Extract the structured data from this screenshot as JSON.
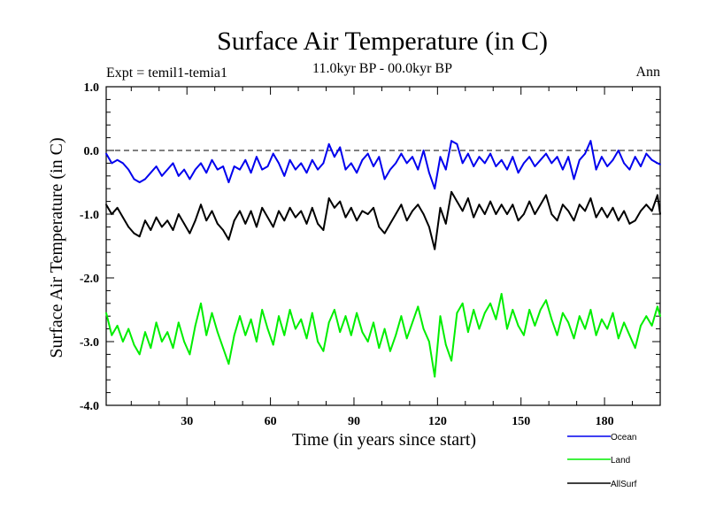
{
  "chart_data": {
    "type": "line",
    "title": "Surface Air Temperature (in C)",
    "subtitle": "11.0kyr BP - 00.0kyr BP",
    "experiment_label": "Expt = temil1-temia1",
    "season_label": "Ann",
    "xlabel": "Time (in years since start)",
    "ylabel": "Surface Air Temperature (in C)",
    "xlim": [
      1,
      200
    ],
    "ylim": [
      -4.0,
      1.0
    ],
    "x_ticks": [
      30,
      60,
      90,
      120,
      150,
      180
    ],
    "y_ticks": [
      1.0,
      0.0,
      -1.0,
      -2.0,
      -3.0,
      -4.0
    ],
    "y_tick_labels": [
      "1.0",
      "0.0",
      "-1.0",
      "-2.0",
      "-3.0",
      "-4.0"
    ],
    "reference_line": 0.0,
    "series": [
      {
        "name": "Ocean",
        "color": "#0000ee",
        "legend": "Ocean",
        "anchors": [
          [
            1,
            -0.05
          ],
          [
            3,
            -0.2
          ],
          [
            5,
            -0.15
          ],
          [
            7,
            -0.2
          ],
          [
            9,
            -0.3
          ],
          [
            11,
            -0.45
          ],
          [
            13,
            -0.5
          ],
          [
            15,
            -0.45
          ],
          [
            17,
            -0.35
          ],
          [
            19,
            -0.25
          ],
          [
            21,
            -0.4
          ],
          [
            23,
            -0.3
          ],
          [
            25,
            -0.2
          ],
          [
            27,
            -0.4
          ],
          [
            29,
            -0.3
          ],
          [
            31,
            -0.45
          ],
          [
            33,
            -0.3
          ],
          [
            35,
            -0.2
          ],
          [
            37,
            -0.35
          ],
          [
            39,
            -0.15
          ],
          [
            41,
            -0.3
          ],
          [
            43,
            -0.25
          ],
          [
            45,
            -0.5
          ],
          [
            47,
            -0.25
          ],
          [
            49,
            -0.3
          ],
          [
            51,
            -0.15
          ],
          [
            53,
            -0.35
          ],
          [
            55,
            -0.1
          ],
          [
            57,
            -0.3
          ],
          [
            59,
            -0.25
          ],
          [
            61,
            -0.05
          ],
          [
            63,
            -0.2
          ],
          [
            65,
            -0.4
          ],
          [
            67,
            -0.15
          ],
          [
            69,
            -0.3
          ],
          [
            71,
            -0.2
          ],
          [
            73,
            -0.35
          ],
          [
            75,
            -0.15
          ],
          [
            77,
            -0.3
          ],
          [
            79,
            -0.2
          ],
          [
            81,
            0.1
          ],
          [
            83,
            -0.1
          ],
          [
            85,
            0.05
          ],
          [
            87,
            -0.3
          ],
          [
            89,
            -0.2
          ],
          [
            91,
            -0.35
          ],
          [
            93,
            -0.15
          ],
          [
            95,
            -0.05
          ],
          [
            97,
            -0.25
          ],
          [
            99,
            -0.1
          ],
          [
            101,
            -0.45
          ],
          [
            103,
            -0.3
          ],
          [
            105,
            -0.2
          ],
          [
            107,
            -0.05
          ],
          [
            109,
            -0.2
          ],
          [
            111,
            -0.1
          ],
          [
            113,
            -0.3
          ],
          [
            115,
            0.0
          ],
          [
            117,
            -0.35
          ],
          [
            119,
            -0.6
          ],
          [
            121,
            -0.1
          ],
          [
            123,
            -0.3
          ],
          [
            125,
            0.15
          ],
          [
            127,
            0.1
          ],
          [
            129,
            -0.2
          ],
          [
            131,
            -0.05
          ],
          [
            133,
            -0.25
          ],
          [
            135,
            -0.1
          ],
          [
            137,
            -0.2
          ],
          [
            139,
            -0.05
          ],
          [
            141,
            -0.25
          ],
          [
            143,
            -0.15
          ],
          [
            145,
            -0.3
          ],
          [
            147,
            -0.1
          ],
          [
            149,
            -0.35
          ],
          [
            151,
            -0.2
          ],
          [
            153,
            -0.1
          ],
          [
            155,
            -0.25
          ],
          [
            157,
            -0.15
          ],
          [
            159,
            -0.05
          ],
          [
            161,
            -0.2
          ],
          [
            163,
            -0.1
          ],
          [
            165,
            -0.3
          ],
          [
            167,
            -0.1
          ],
          [
            169,
            -0.45
          ],
          [
            171,
            -0.15
          ],
          [
            173,
            -0.05
          ],
          [
            175,
            0.15
          ],
          [
            177,
            -0.3
          ],
          [
            179,
            -0.1
          ],
          [
            181,
            -0.25
          ],
          [
            183,
            -0.15
          ],
          [
            185,
            0.0
          ],
          [
            187,
            -0.2
          ],
          [
            189,
            -0.3
          ],
          [
            191,
            -0.1
          ],
          [
            193,
            -0.25
          ],
          [
            195,
            -0.05
          ],
          [
            197,
            -0.15
          ],
          [
            199,
            -0.2
          ],
          [
            200,
            -0.22
          ]
        ]
      },
      {
        "name": "Land",
        "color": "#00ee00",
        "legend": "Land",
        "anchors": [
          [
            1,
            -2.55
          ],
          [
            3,
            -2.9
          ],
          [
            5,
            -2.75
          ],
          [
            7,
            -3.0
          ],
          [
            9,
            -2.8
          ],
          [
            11,
            -3.05
          ],
          [
            13,
            -3.2
          ],
          [
            15,
            -2.85
          ],
          [
            17,
            -3.1
          ],
          [
            19,
            -2.7
          ],
          [
            21,
            -3.0
          ],
          [
            23,
            -2.85
          ],
          [
            25,
            -3.1
          ],
          [
            27,
            -2.7
          ],
          [
            29,
            -3.0
          ],
          [
            31,
            -3.2
          ],
          [
            33,
            -2.75
          ],
          [
            35,
            -2.4
          ],
          [
            37,
            -2.9
          ],
          [
            39,
            -2.55
          ],
          [
            41,
            -2.85
          ],
          [
            43,
            -3.1
          ],
          [
            45,
            -3.35
          ],
          [
            47,
            -2.9
          ],
          [
            49,
            -2.6
          ],
          [
            51,
            -2.9
          ],
          [
            53,
            -2.65
          ],
          [
            55,
            -3.0
          ],
          [
            57,
            -2.5
          ],
          [
            59,
            -2.8
          ],
          [
            61,
            -3.05
          ],
          [
            63,
            -2.6
          ],
          [
            65,
            -2.9
          ],
          [
            67,
            -2.5
          ],
          [
            69,
            -2.8
          ],
          [
            71,
            -2.65
          ],
          [
            73,
            -2.95
          ],
          [
            75,
            -2.55
          ],
          [
            77,
            -3.0
          ],
          [
            79,
            -3.15
          ],
          [
            81,
            -2.7
          ],
          [
            83,
            -2.5
          ],
          [
            85,
            -2.85
          ],
          [
            87,
            -2.6
          ],
          [
            89,
            -2.9
          ],
          [
            91,
            -2.55
          ],
          [
            93,
            -2.85
          ],
          [
            95,
            -3.0
          ],
          [
            97,
            -2.7
          ],
          [
            99,
            -3.1
          ],
          [
            101,
            -2.8
          ],
          [
            103,
            -3.15
          ],
          [
            105,
            -2.9
          ],
          [
            107,
            -2.6
          ],
          [
            109,
            -2.95
          ],
          [
            111,
            -2.7
          ],
          [
            113,
            -2.45
          ],
          [
            115,
            -2.8
          ],
          [
            117,
            -3.0
          ],
          [
            119,
            -3.55
          ],
          [
            121,
            -2.6
          ],
          [
            123,
            -3.05
          ],
          [
            125,
            -3.3
          ],
          [
            127,
            -2.55
          ],
          [
            129,
            -2.4
          ],
          [
            131,
            -2.85
          ],
          [
            133,
            -2.5
          ],
          [
            135,
            -2.8
          ],
          [
            137,
            -2.55
          ],
          [
            139,
            -2.4
          ],
          [
            141,
            -2.65
          ],
          [
            143,
            -2.25
          ],
          [
            145,
            -2.8
          ],
          [
            147,
            -2.5
          ],
          [
            149,
            -2.75
          ],
          [
            151,
            -2.9
          ],
          [
            153,
            -2.5
          ],
          [
            155,
            -2.75
          ],
          [
            157,
            -2.5
          ],
          [
            159,
            -2.35
          ],
          [
            161,
            -2.65
          ],
          [
            163,
            -2.9
          ],
          [
            165,
            -2.55
          ],
          [
            167,
            -2.7
          ],
          [
            169,
            -2.95
          ],
          [
            171,
            -2.6
          ],
          [
            173,
            -2.8
          ],
          [
            175,
            -2.5
          ],
          [
            177,
            -2.9
          ],
          [
            179,
            -2.65
          ],
          [
            181,
            -2.8
          ],
          [
            183,
            -2.55
          ],
          [
            185,
            -2.95
          ],
          [
            187,
            -2.7
          ],
          [
            189,
            -2.9
          ],
          [
            191,
            -3.1
          ],
          [
            193,
            -2.75
          ],
          [
            195,
            -2.6
          ],
          [
            197,
            -2.75
          ],
          [
            199,
            -2.45
          ],
          [
            200,
            -2.6
          ]
        ]
      },
      {
        "name": "AllSurf",
        "color": "#000000",
        "legend": "AllSurf",
        "anchors": [
          [
            1,
            -0.85
          ],
          [
            3,
            -1.0
          ],
          [
            5,
            -0.9
          ],
          [
            7,
            -1.05
          ],
          [
            9,
            -1.2
          ],
          [
            11,
            -1.3
          ],
          [
            13,
            -1.35
          ],
          [
            15,
            -1.1
          ],
          [
            17,
            -1.25
          ],
          [
            19,
            -1.05
          ],
          [
            21,
            -1.2
          ],
          [
            23,
            -1.1
          ],
          [
            25,
            -1.25
          ],
          [
            27,
            -1.0
          ],
          [
            29,
            -1.15
          ],
          [
            31,
            -1.3
          ],
          [
            33,
            -1.1
          ],
          [
            35,
            -0.85
          ],
          [
            37,
            -1.1
          ],
          [
            39,
            -0.95
          ],
          [
            41,
            -1.15
          ],
          [
            43,
            -1.25
          ],
          [
            45,
            -1.4
          ],
          [
            47,
            -1.1
          ],
          [
            49,
            -0.95
          ],
          [
            51,
            -1.15
          ],
          [
            53,
            -0.95
          ],
          [
            55,
            -1.2
          ],
          [
            57,
            -0.9
          ],
          [
            59,
            -1.05
          ],
          [
            61,
            -1.2
          ],
          [
            63,
            -0.95
          ],
          [
            65,
            -1.1
          ],
          [
            67,
            -0.9
          ],
          [
            69,
            -1.05
          ],
          [
            71,
            -0.95
          ],
          [
            73,
            -1.15
          ],
          [
            75,
            -0.9
          ],
          [
            77,
            -1.15
          ],
          [
            79,
            -1.25
          ],
          [
            81,
            -0.75
          ],
          [
            83,
            -0.9
          ],
          [
            85,
            -0.8
          ],
          [
            87,
            -1.05
          ],
          [
            89,
            -0.9
          ],
          [
            91,
            -1.1
          ],
          [
            93,
            -0.95
          ],
          [
            95,
            -1.0
          ],
          [
            97,
            -0.9
          ],
          [
            99,
            -1.2
          ],
          [
            101,
            -1.3
          ],
          [
            103,
            -1.15
          ],
          [
            105,
            -1.0
          ],
          [
            107,
            -0.85
          ],
          [
            109,
            -1.1
          ],
          [
            111,
            -0.95
          ],
          [
            113,
            -0.85
          ],
          [
            115,
            -1.0
          ],
          [
            117,
            -1.2
          ],
          [
            119,
            -1.55
          ],
          [
            121,
            -0.9
          ],
          [
            123,
            -1.15
          ],
          [
            125,
            -0.65
          ],
          [
            127,
            -0.8
          ],
          [
            129,
            -0.95
          ],
          [
            131,
            -0.75
          ],
          [
            133,
            -1.05
          ],
          [
            135,
            -0.85
          ],
          [
            137,
            -1.0
          ],
          [
            139,
            -0.8
          ],
          [
            141,
            -1.0
          ],
          [
            143,
            -0.85
          ],
          [
            145,
            -1.0
          ],
          [
            147,
            -0.85
          ],
          [
            149,
            -1.1
          ],
          [
            151,
            -1.0
          ],
          [
            153,
            -0.8
          ],
          [
            155,
            -1.0
          ],
          [
            157,
            -0.85
          ],
          [
            159,
            -0.7
          ],
          [
            161,
            -1.0
          ],
          [
            163,
            -1.1
          ],
          [
            165,
            -0.85
          ],
          [
            167,
            -0.95
          ],
          [
            169,
            -1.1
          ],
          [
            171,
            -0.85
          ],
          [
            173,
            -0.95
          ],
          [
            175,
            -0.75
          ],
          [
            177,
            -1.05
          ],
          [
            179,
            -0.9
          ],
          [
            181,
            -1.05
          ],
          [
            183,
            -0.9
          ],
          [
            185,
            -1.1
          ],
          [
            187,
            -0.95
          ],
          [
            189,
            -1.15
          ],
          [
            191,
            -1.1
          ],
          [
            193,
            -0.95
          ],
          [
            195,
            -0.85
          ],
          [
            197,
            -0.95
          ],
          [
            199,
            -0.7
          ],
          [
            200,
            -1.0
          ]
        ]
      }
    ]
  }
}
